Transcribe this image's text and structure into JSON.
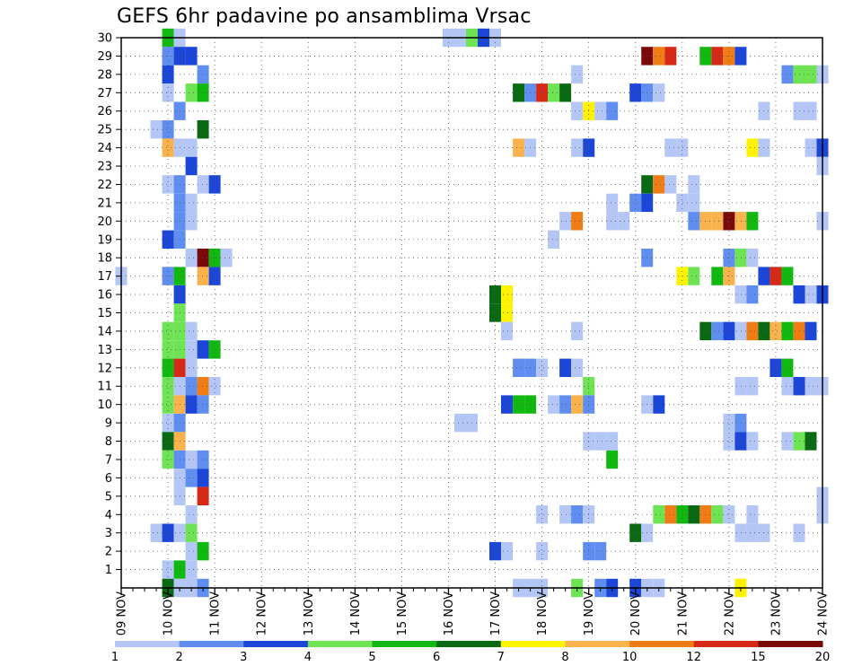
{
  "chart_data": {
    "type": "heatmap",
    "title": "GEFS 6hr padavine po ansamblima Vrsac",
    "xlabel": "",
    "ylabel": "",
    "x_day_labels": [
      "09 NOV",
      "10 NOV",
      "11 NOV",
      "12 NOV",
      "13 NOV",
      "14 NOV",
      "15 NOV",
      "16 NOV",
      "17 NOV",
      "18 NOV",
      "19 NOV",
      "20 NOV",
      "21 NOV",
      "22 NOV",
      "23 NOV",
      "24 NOV"
    ],
    "y_tick_labels": [
      "1",
      "2",
      "3",
      "4",
      "5",
      "6",
      "7",
      "8",
      "9",
      "10",
      "11",
      "12",
      "13",
      "14",
      "15",
      "16",
      "17",
      "18",
      "19",
      "20",
      "21",
      "22",
      "23",
      "24",
      "25",
      "26",
      "27",
      "28",
      "29",
      "30"
    ],
    "xlim_steps": [
      0,
      60
    ],
    "ylim_members": [
      0,
      30
    ],
    "legend": {
      "labels": [
        "1",
        "2",
        "3",
        "4",
        "5",
        "6",
        "7",
        "8",
        "10",
        "12",
        "15",
        "20"
      ],
      "colors": [
        "#b4c6f5",
        "#5f8ef0",
        "#1b46d8",
        "#6ee455",
        "#10b810",
        "#0a6a14",
        "#fff200",
        "#f9b24c",
        "#f07c15",
        "#d62a16",
        "#7a0a0a"
      ]
    },
    "levels": {
      "1": "#b4c6f5",
      "2": "#5f8ef0",
      "3": "#1b46d8",
      "4": "#6ee455",
      "5": "#10b810",
      "6": "#0a6a14",
      "7": "#fff200",
      "8": "#f9b24c",
      "10": "#f07c15",
      "12": "#d62a16",
      "15": "#7a0a0a"
    },
    "cells_format": "[step_index_6h_from_09NOV00Z, member, level_lower_bound_mm]",
    "cells": [
      [
        4,
        30,
        5
      ],
      [
        5,
        30,
        1
      ],
      [
        28,
        30,
        1
      ],
      [
        29,
        30,
        1
      ],
      [
        30,
        30,
        4
      ],
      [
        31,
        30,
        3
      ],
      [
        32,
        30,
        1
      ],
      [
        4,
        29,
        2
      ],
      [
        5,
        29,
        3
      ],
      [
        6,
        29,
        3
      ],
      [
        45,
        29,
        15
      ],
      [
        46,
        29,
        10
      ],
      [
        47,
        29,
        12
      ],
      [
        50,
        29,
        5
      ],
      [
        51,
        29,
        12
      ],
      [
        52,
        29,
        10
      ],
      [
        53,
        29,
        3
      ],
      [
        4,
        28,
        3
      ],
      [
        7,
        28,
        2
      ],
      [
        39,
        28,
        1
      ],
      [
        57,
        28,
        2
      ],
      [
        58,
        28,
        4
      ],
      [
        59,
        28,
        4
      ],
      [
        60,
        28,
        1
      ],
      [
        4,
        27,
        1
      ],
      [
        6,
        27,
        4
      ],
      [
        7,
        27,
        5
      ],
      [
        34,
        27,
        6
      ],
      [
        35,
        27,
        2
      ],
      [
        36,
        27,
        12
      ],
      [
        37,
        27,
        4
      ],
      [
        38,
        27,
        6
      ],
      [
        44,
        27,
        3
      ],
      [
        45,
        27,
        2
      ],
      [
        46,
        27,
        1
      ],
      [
        5,
        26,
        2
      ],
      [
        39,
        26,
        1
      ],
      [
        40,
        26,
        7
      ],
      [
        41,
        26,
        1
      ],
      [
        42,
        26,
        2
      ],
      [
        55,
        26,
        1
      ],
      [
        58,
        26,
        1
      ],
      [
        59,
        26,
        1
      ],
      [
        3,
        25,
        1
      ],
      [
        4,
        25,
        2
      ],
      [
        7,
        25,
        6
      ],
      [
        4,
        24,
        8
      ],
      [
        5,
        24,
        1
      ],
      [
        6,
        24,
        1
      ],
      [
        34,
        24,
        8
      ],
      [
        35,
        24,
        1
      ],
      [
        39,
        24,
        1
      ],
      [
        40,
        24,
        3
      ],
      [
        47,
        24,
        1
      ],
      [
        48,
        24,
        1
      ],
      [
        54,
        24,
        7
      ],
      [
        55,
        24,
        1
      ],
      [
        59,
        24,
        1
      ],
      [
        60,
        24,
        3
      ],
      [
        6,
        23,
        3
      ],
      [
        60,
        23,
        1
      ],
      [
        4,
        22,
        1
      ],
      [
        5,
        22,
        2
      ],
      [
        7,
        22,
        1
      ],
      [
        8,
        22,
        3
      ],
      [
        45,
        22,
        6
      ],
      [
        46,
        22,
        10
      ],
      [
        47,
        22,
        1
      ],
      [
        49,
        22,
        1
      ],
      [
        5,
        21,
        2
      ],
      [
        6,
        21,
        1
      ],
      [
        42,
        21,
        1
      ],
      [
        44,
        21,
        2
      ],
      [
        45,
        21,
        3
      ],
      [
        48,
        21,
        1
      ],
      [
        49,
        21,
        1
      ],
      [
        5,
        20,
        2
      ],
      [
        6,
        20,
        1
      ],
      [
        38,
        20,
        1
      ],
      [
        39,
        20,
        10
      ],
      [
        42,
        20,
        1
      ],
      [
        43,
        20,
        1
      ],
      [
        49,
        20,
        2
      ],
      [
        50,
        20,
        8
      ],
      [
        51,
        20,
        8
      ],
      [
        52,
        20,
        15
      ],
      [
        53,
        20,
        8
      ],
      [
        54,
        20,
        5
      ],
      [
        60,
        20,
        1
      ],
      [
        4,
        19,
        3
      ],
      [
        5,
        19,
        2
      ],
      [
        37,
        19,
        1
      ],
      [
        6,
        18,
        1
      ],
      [
        7,
        18,
        15
      ],
      [
        8,
        18,
        5
      ],
      [
        9,
        18,
        1
      ],
      [
        45,
        18,
        2
      ],
      [
        52,
        18,
        2
      ],
      [
        53,
        18,
        4
      ],
      [
        54,
        18,
        1
      ],
      [
        0,
        17,
        1
      ],
      [
        4,
        17,
        2
      ],
      [
        5,
        17,
        5
      ],
      [
        7,
        17,
        8
      ],
      [
        8,
        17,
        3
      ],
      [
        48,
        17,
        7
      ],
      [
        49,
        17,
        4
      ],
      [
        51,
        17,
        5
      ],
      [
        52,
        17,
        8
      ],
      [
        55,
        17,
        3
      ],
      [
        56,
        17,
        12
      ],
      [
        57,
        17,
        5
      ],
      [
        5,
        16,
        3
      ],
      [
        32,
        16,
        6
      ],
      [
        33,
        16,
        7
      ],
      [
        53,
        16,
        1
      ],
      [
        54,
        16,
        2
      ],
      [
        58,
        16,
        3
      ],
      [
        59,
        16,
        1
      ],
      [
        60,
        16,
        3
      ],
      [
        32,
        15,
        6
      ],
      [
        33,
        15,
        7
      ],
      [
        5,
        15,
        4
      ],
      [
        4,
        14,
        4
      ],
      [
        5,
        14,
        4
      ],
      [
        6,
        14,
        1
      ],
      [
        33,
        14,
        1
      ],
      [
        39,
        14,
        1
      ],
      [
        50,
        14,
        6
      ],
      [
        51,
        14,
        2
      ],
      [
        52,
        14,
        3
      ],
      [
        53,
        14,
        1
      ],
      [
        54,
        14,
        10
      ],
      [
        55,
        14,
        6
      ],
      [
        56,
        14,
        8
      ],
      [
        57,
        14,
        5
      ],
      [
        58,
        14,
        10
      ],
      [
        59,
        14,
        3
      ],
      [
        4,
        13,
        4
      ],
      [
        5,
        13,
        4
      ],
      [
        6,
        13,
        1
      ],
      [
        7,
        13,
        3
      ],
      [
        8,
        13,
        5
      ],
      [
        4,
        12,
        5
      ],
      [
        5,
        12,
        12
      ],
      [
        6,
        12,
        1
      ],
      [
        34,
        12,
        2
      ],
      [
        35,
        12,
        2
      ],
      [
        36,
        12,
        1
      ],
      [
        38,
        12,
        3
      ],
      [
        39,
        12,
        1
      ],
      [
        56,
        12,
        3
      ],
      [
        57,
        12,
        5
      ],
      [
        4,
        11,
        4
      ],
      [
        5,
        11,
        1
      ],
      [
        6,
        11,
        2
      ],
      [
        7,
        11,
        10
      ],
      [
        8,
        11,
        1
      ],
      [
        40,
        11,
        4
      ],
      [
        53,
        11,
        1
      ],
      [
        54,
        11,
        1
      ],
      [
        57,
        11,
        1
      ],
      [
        58,
        11,
        3
      ],
      [
        59,
        11,
        1
      ],
      [
        60,
        11,
        1
      ],
      [
        4,
        10,
        4
      ],
      [
        5,
        10,
        8
      ],
      [
        6,
        10,
        3
      ],
      [
        7,
        10,
        2
      ],
      [
        33,
        10,
        3
      ],
      [
        34,
        10,
        5
      ],
      [
        35,
        10,
        5
      ],
      [
        37,
        10,
        1
      ],
      [
        38,
        10,
        2
      ],
      [
        39,
        10,
        8
      ],
      [
        40,
        10,
        2
      ],
      [
        45,
        10,
        1
      ],
      [
        46,
        10,
        3
      ],
      [
        4,
        9,
        1
      ],
      [
        5,
        9,
        2
      ],
      [
        29,
        9,
        1
      ],
      [
        30,
        9,
        1
      ],
      [
        52,
        9,
        1
      ],
      [
        53,
        9,
        2
      ],
      [
        4,
        8,
        6
      ],
      [
        5,
        8,
        8
      ],
      [
        40,
        8,
        1
      ],
      [
        41,
        8,
        1
      ],
      [
        42,
        8,
        1
      ],
      [
        52,
        8,
        1
      ],
      [
        53,
        8,
        3
      ],
      [
        54,
        8,
        1
      ],
      [
        57,
        8,
        1
      ],
      [
        58,
        8,
        4
      ],
      [
        59,
        8,
        6
      ],
      [
        4,
        7,
        4
      ],
      [
        5,
        7,
        2
      ],
      [
        6,
        7,
        1
      ],
      [
        7,
        7,
        2
      ],
      [
        42,
        7,
        5
      ],
      [
        5,
        6,
        1
      ],
      [
        6,
        6,
        2
      ],
      [
        7,
        6,
        3
      ],
      [
        5,
        5,
        1
      ],
      [
        7,
        5,
        12
      ],
      [
        60,
        5,
        1
      ],
      [
        6,
        4,
        1
      ],
      [
        36,
        4,
        1
      ],
      [
        38,
        4,
        1
      ],
      [
        39,
        4,
        2
      ],
      [
        40,
        4,
        1
      ],
      [
        46,
        4,
        4
      ],
      [
        47,
        4,
        10
      ],
      [
        48,
        4,
        5
      ],
      [
        49,
        4,
        6
      ],
      [
        50,
        4,
        10
      ],
      [
        51,
        4,
        4
      ],
      [
        52,
        4,
        1
      ],
      [
        54,
        4,
        1
      ],
      [
        60,
        4,
        1
      ],
      [
        3,
        3,
        1
      ],
      [
        4,
        3,
        3
      ],
      [
        5,
        3,
        1
      ],
      [
        6,
        3,
        4
      ],
      [
        44,
        3,
        6
      ],
      [
        45,
        3,
        1
      ],
      [
        53,
        3,
        1
      ],
      [
        54,
        3,
        1
      ],
      [
        55,
        3,
        1
      ],
      [
        58,
        3,
        1
      ],
      [
        6,
        2,
        1
      ],
      [
        7,
        2,
        5
      ],
      [
        32,
        2,
        3
      ],
      [
        33,
        2,
        1
      ],
      [
        36,
        2,
        1
      ],
      [
        40,
        2,
        2
      ],
      [
        41,
        2,
        2
      ],
      [
        4,
        1,
        1
      ],
      [
        5,
        1,
        5
      ],
      [
        6,
        1,
        1
      ],
      [
        4,
        0,
        6
      ],
      [
        5,
        0,
        1
      ],
      [
        6,
        0,
        1
      ],
      [
        7,
        0,
        2
      ],
      [
        34,
        0,
        1
      ],
      [
        35,
        0,
        1
      ],
      [
        36,
        0,
        1
      ],
      [
        39,
        0,
        4
      ],
      [
        41,
        0,
        2
      ],
      [
        42,
        0,
        3
      ],
      [
        44,
        0,
        3
      ],
      [
        45,
        0,
        1
      ],
      [
        46,
        0,
        1
      ],
      [
        53,
        0,
        7
      ]
    ]
  }
}
